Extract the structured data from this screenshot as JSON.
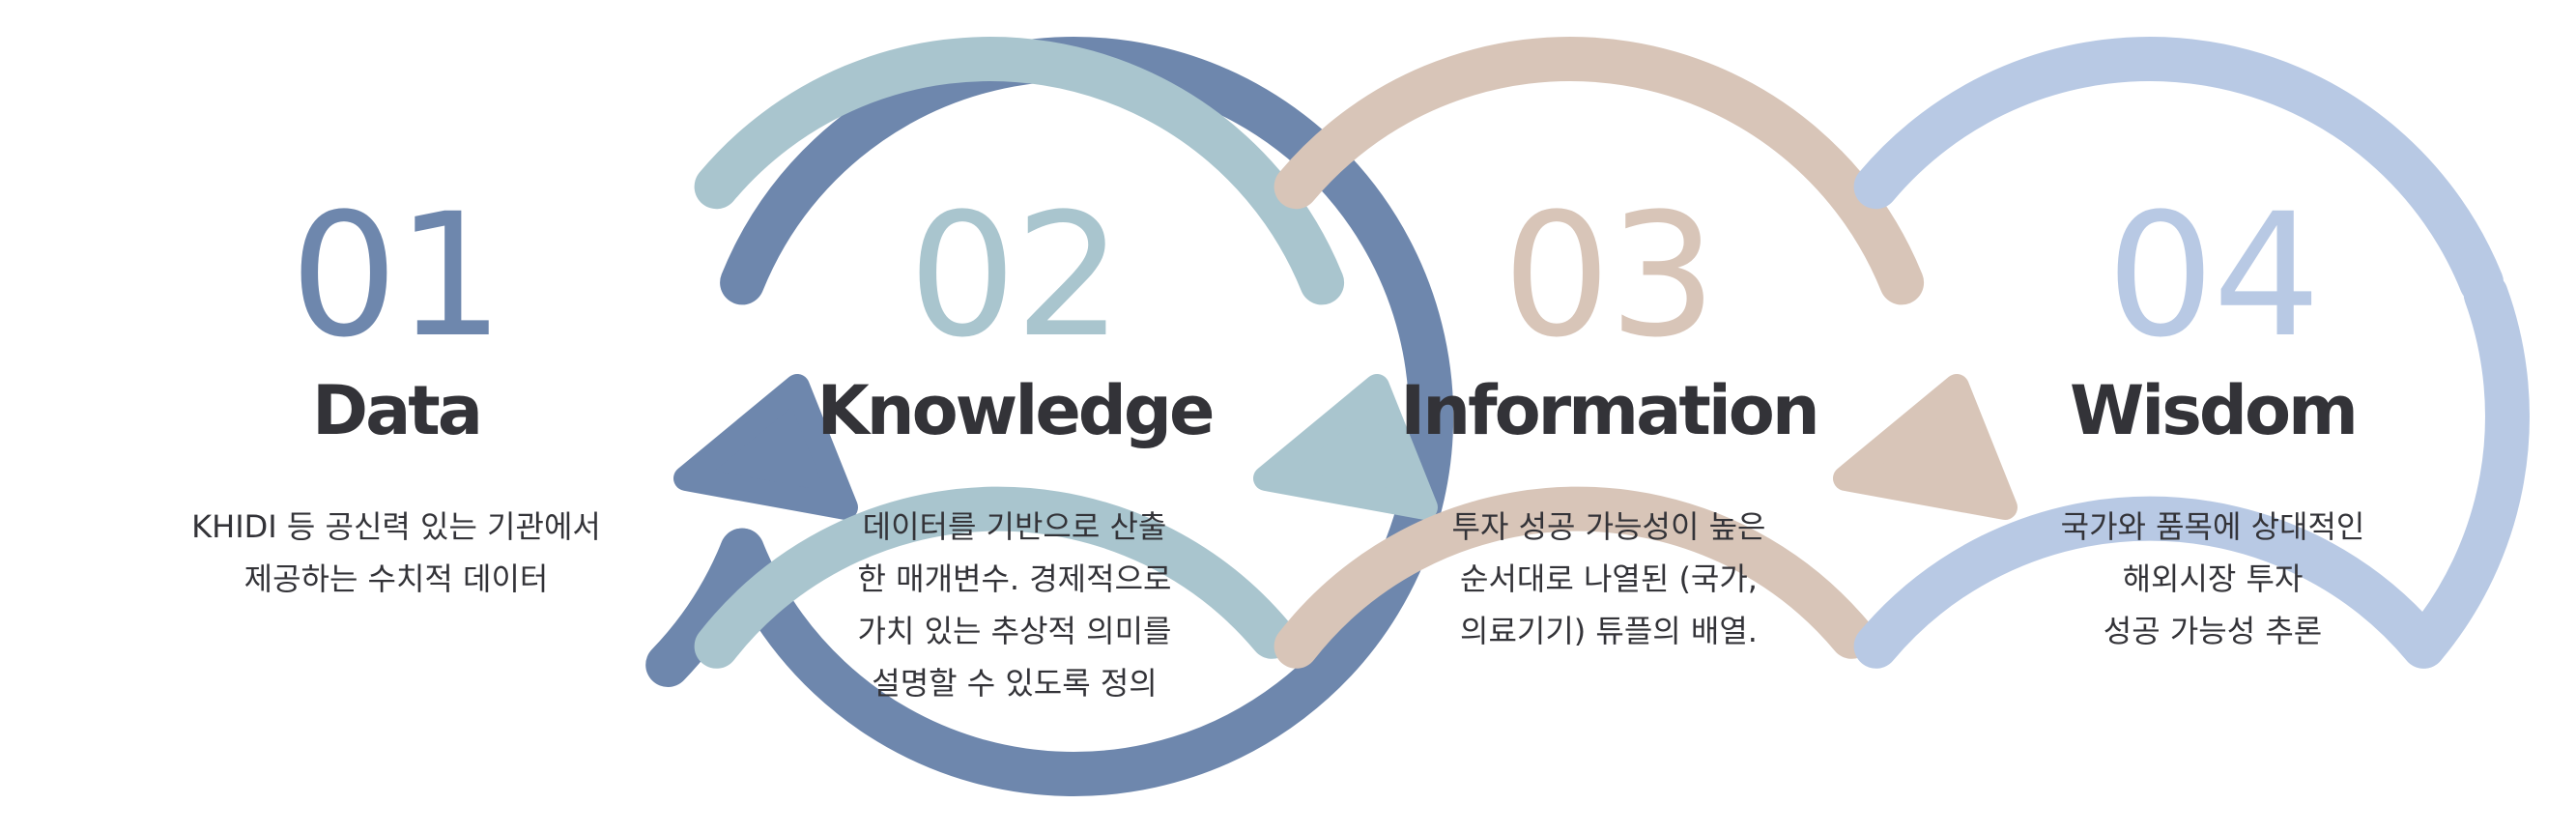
{
  "colors": {
    "stage1": "#6e87ad",
    "stage2": "#a9c5ce",
    "stage3": "#d8c5b8",
    "stage4": "#b8c9e4",
    "text": "#333338"
  },
  "stages": [
    {
      "number": "01",
      "title": "Data",
      "description": [
        "KHIDI 등 공신력 있는 기관에서",
        "제공하는 수치적 데이터"
      ]
    },
    {
      "number": "02",
      "title": "Knowledge",
      "description": [
        "데이터를 기반으로 산출",
        "한 매개변수. 경제적으로",
        "가치 있는 추상적 의미를",
        "설명할 수 있도록 정의"
      ]
    },
    {
      "number": "03",
      "title": "Information",
      "description": [
        "투자 성공 가능성이 높은",
        "순서대로 나열된 (국가,",
        "의료기기) 튜플의 배열."
      ]
    },
    {
      "number": "04",
      "title": "Wisdom",
      "description": [
        "국가와 품목에 상대적인",
        "해외시장 투자",
        "성공 가능성 추론"
      ]
    }
  ]
}
